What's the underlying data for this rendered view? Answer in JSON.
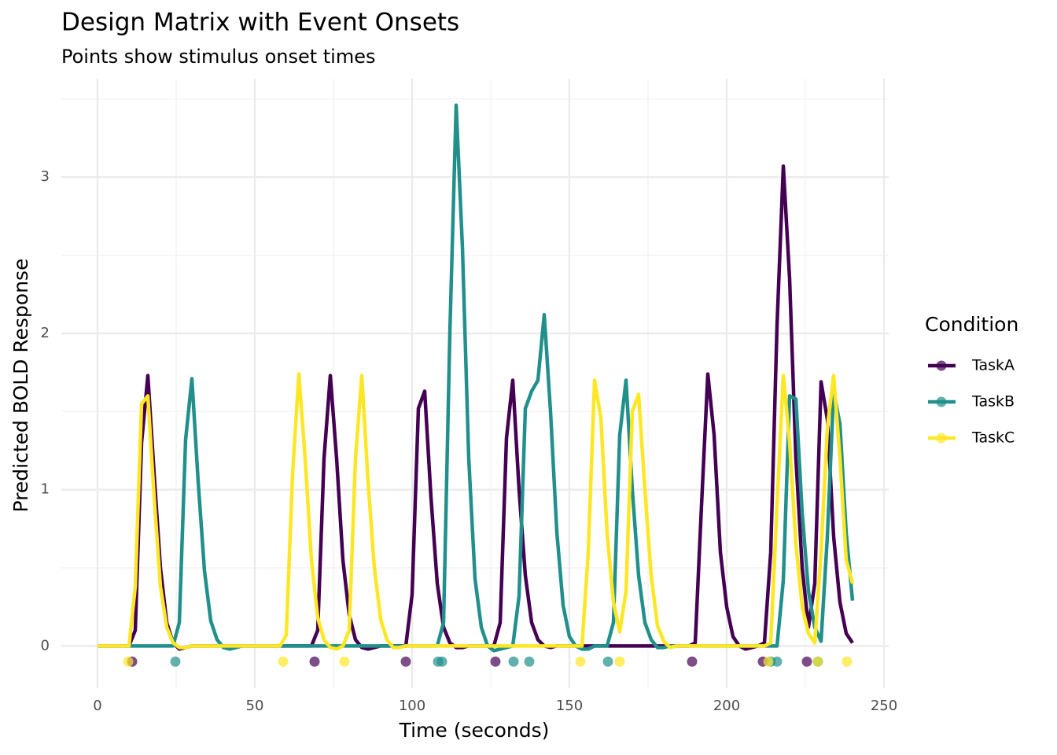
{
  "chart_data": {
    "type": "line",
    "title": "Design Matrix with Event Onsets",
    "subtitle": "Points show stimulus onset times",
    "x_label": "Time (seconds)",
    "y_label": "Predicted BOLD Response",
    "legend_title": "Condition",
    "legend_position": "right",
    "grid": true,
    "xlim": [
      -11.5,
      251.5
    ],
    "ylim": [
      -0.27,
      3.63
    ],
    "xticks": [
      0,
      50,
      100,
      150,
      200,
      250
    ],
    "yticks": [
      0,
      1,
      2,
      3
    ],
    "x_minor_ticks": [
      25,
      75,
      125,
      175,
      225
    ],
    "y_minor_ticks": [
      0.5,
      1.5,
      2.5,
      3.5
    ],
    "x": [
      0,
      2,
      4,
      6,
      8,
      10,
      12,
      14,
      16,
      18,
      20,
      22,
      24,
      26,
      28,
      30,
      32,
      34,
      36,
      38,
      40,
      42,
      44,
      46,
      48,
      50,
      52,
      54,
      56,
      58,
      60,
      62,
      64,
      66,
      68,
      70,
      72,
      74,
      76,
      78,
      80,
      82,
      84,
      86,
      88,
      90,
      92,
      94,
      96,
      98,
      100,
      102,
      104,
      106,
      108,
      110,
      112,
      114,
      116,
      118,
      120,
      122,
      124,
      126,
      128,
      130,
      132,
      134,
      136,
      138,
      140,
      142,
      144,
      146,
      148,
      150,
      152,
      154,
      156,
      158,
      160,
      162,
      164,
      166,
      168,
      170,
      172,
      174,
      176,
      178,
      180,
      182,
      184,
      186,
      188,
      190,
      192,
      194,
      196,
      198,
      200,
      202,
      204,
      206,
      208,
      210,
      212,
      214,
      216,
      218,
      220,
      222,
      224,
      226,
      228,
      230,
      232,
      234,
      236,
      238,
      240
    ],
    "series": [
      {
        "name": "TaskA",
        "color": "#440154",
        "values": [
          0,
          0,
          0,
          0,
          0,
          0,
          0.1,
          1.3,
          1.73,
          1.1,
          0.5,
          0.15,
          0.02,
          -0.02,
          -0.01,
          0,
          0,
          0,
          0,
          0,
          0,
          0,
          0,
          0,
          0,
          0,
          0,
          0,
          0,
          0,
          0,
          0,
          0,
          0,
          0,
          0.1,
          1.2,
          1.73,
          1.2,
          0.55,
          0.2,
          0.04,
          -0.01,
          -0.02,
          -0.01,
          0,
          0,
          0,
          0,
          0,
          0.33,
          1.52,
          1.63,
          0.95,
          0.4,
          0.12,
          0.02,
          -0.01,
          -0.01,
          0,
          0,
          0,
          0,
          0,
          0.15,
          1.33,
          1.7,
          1.0,
          0.45,
          0.15,
          0.04,
          0,
          -0.01,
          0,
          0,
          0,
          0,
          0,
          0,
          0,
          0,
          0,
          0,
          0,
          0,
          0,
          0,
          0,
          0,
          0,
          0,
          0,
          0,
          0,
          0,
          0.02,
          0.9,
          1.74,
          1.35,
          0.6,
          0.25,
          0.06,
          0,
          -0.02,
          -0.01,
          0,
          0.02,
          0.6,
          2.05,
          3.07,
          2.35,
          1.2,
          0.5,
          0.12,
          0.4,
          1.69,
          1.45,
          0.7,
          0.28,
          0.08,
          0.02
        ],
        "onsets": {
          "x": [
            11,
            69,
            98,
            126.5,
            189,
            211.5,
            225.5
          ],
          "y": [
            -0.1,
            -0.1,
            -0.1,
            -0.1,
            -0.1,
            -0.1,
            -0.1
          ]
        }
      },
      {
        "name": "TaskB",
        "color": "#21908C",
        "values": [
          0,
          0,
          0,
          0,
          0,
          0,
          0,
          0,
          0,
          0,
          0,
          0,
          0,
          0.15,
          1.32,
          1.71,
          1.05,
          0.48,
          0.16,
          0.04,
          -0.01,
          -0.02,
          -0.01,
          0,
          0,
          0,
          0,
          0,
          0,
          0,
          0,
          0,
          0,
          0,
          0,
          0,
          0,
          0,
          0,
          0,
          0,
          0,
          0,
          0,
          0,
          0,
          0,
          0,
          0,
          0,
          0,
          0,
          0,
          0,
          0,
          0.15,
          2.0,
          3.46,
          2.55,
          1.2,
          0.43,
          0.12,
          0,
          -0.03,
          -0.02,
          -0.01,
          0,
          0.32,
          1.52,
          1.63,
          1.7,
          2.12,
          1.5,
          0.73,
          0.26,
          0.06,
          0,
          -0.02,
          -0.02,
          0,
          0,
          0,
          0.15,
          1.35,
          1.7,
          1.0,
          0.45,
          0.15,
          0.04,
          -0.01,
          -0.01,
          0,
          0,
          0,
          0,
          0,
          0,
          0,
          0,
          0,
          0,
          0,
          0,
          0,
          0,
          0,
          0,
          0,
          0,
          0.42,
          1.6,
          1.58,
          0.85,
          0.35,
          0.12,
          0.03,
          0.7,
          1.63,
          1.42,
          0.72,
          0.29
        ],
        "onsets": {
          "x": [
            24.75,
            108.25,
            109.5,
            132.25,
            137.25,
            162.25,
            214,
            216,
            229
          ],
          "y": [
            -0.1,
            -0.1,
            -0.1,
            -0.1,
            -0.1,
            -0.1,
            -0.1,
            -0.1,
            -0.1
          ]
        }
      },
      {
        "name": "TaskC",
        "color": "#FDE725",
        "values": [
          0,
          0,
          0,
          0,
          0,
          0,
          0.38,
          1.55,
          1.6,
          0.95,
          0.38,
          0.12,
          0.02,
          -0.01,
          -0.01,
          0,
          0,
          0,
          0,
          0,
          0,
          0,
          0,
          0,
          0,
          0,
          0,
          0,
          0,
          0,
          0.07,
          1.1,
          1.74,
          1.2,
          0.55,
          0.18,
          0.04,
          -0.01,
          -0.02,
          0,
          0.1,
          1.2,
          1.73,
          1.05,
          0.5,
          0.17,
          0.04,
          -0.01,
          -0.01,
          0,
          0,
          0,
          0,
          0,
          0,
          0,
          0,
          0,
          0,
          0,
          0,
          0,
          0,
          0,
          0,
          0,
          0,
          0,
          0,
          0,
          0,
          0,
          0,
          0,
          0,
          0,
          0,
          0,
          0.6,
          1.7,
          1.46,
          0.72,
          0.28,
          0.09,
          0.35,
          1.5,
          1.61,
          1.0,
          0.45,
          0.13,
          0.03,
          -0.01,
          0,
          0,
          0,
          0,
          0,
          0,
          0,
          0,
          0,
          0,
          0,
          0,
          0,
          0,
          0,
          0.02,
          0.9,
          1.73,
          1.3,
          0.65,
          0.25,
          0.08,
          0.02,
          0.6,
          1.4,
          1.73,
          1.2,
          0.55,
          0.4
        ],
        "onsets": {
          "x": [
            9.75,
            59,
            78.5,
            153.5,
            166,
            213.25,
            229,
            238.25
          ],
          "y": [
            -0.1,
            -0.1,
            -0.1,
            -0.1,
            -0.1,
            -0.1,
            -0.1,
            -0.1
          ]
        }
      }
    ]
  }
}
